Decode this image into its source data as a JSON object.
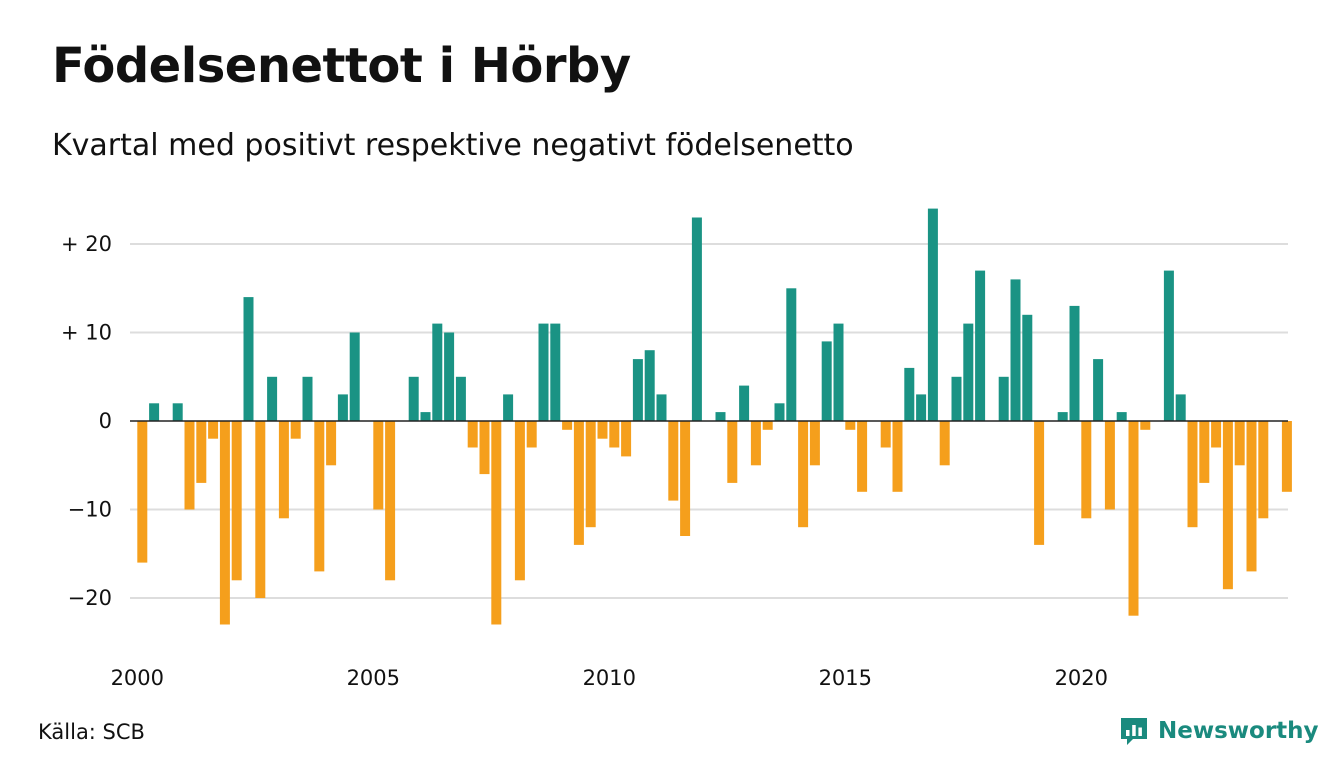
{
  "header": {
    "title": "Födelsenettot i Hörby",
    "subtitle": "Kvartal med positivt respektive negativt födelsenetto"
  },
  "footer": {
    "source": "Källa: SCB",
    "brand": "Newsworthy",
    "brand_icon": "newsworthy-logo-icon"
  },
  "colors": {
    "positive": "#1a9384",
    "negative": "#f59f1c",
    "grid": "#dddddd",
    "zero_line": "#222222"
  },
  "chart_data": {
    "type": "bar",
    "ylim": [
      -26,
      25
    ],
    "y_ticks": [
      {
        "value": 20,
        "label": "+ 20"
      },
      {
        "value": 10,
        "label": "+ 10"
      },
      {
        "value": 0,
        "label": "0"
      },
      {
        "value": -10,
        "label": "−10"
      },
      {
        "value": -20,
        "label": "−20"
      }
    ],
    "x_ticks": [
      "2000",
      "2005",
      "2010",
      "2015",
      "2020"
    ],
    "grid": true,
    "legend": "none",
    "x_start": "2000Q1",
    "values": [
      -16,
      2,
      0,
      2,
      -10,
      -7,
      -2,
      -23,
      -18,
      14,
      -20,
      5,
      -11,
      -2,
      5,
      -17,
      -5,
      3,
      10,
      0,
      -10,
      -18,
      0,
      5,
      1,
      11,
      10,
      5,
      -3,
      -6,
      -23,
      3,
      -18,
      -3,
      11,
      11,
      -1,
      -14,
      -12,
      -2,
      -3,
      -4,
      7,
      8,
      3,
      -9,
      -13,
      23,
      0,
      1,
      -7,
      4,
      -5,
      -1,
      2,
      15,
      -12,
      -5,
      9,
      11,
      -1,
      -8,
      0,
      -3,
      -8,
      6,
      3,
      24,
      -5,
      5,
      11,
      17,
      0,
      5,
      16,
      12,
      -14,
      0,
      1,
      13,
      -11,
      7,
      -10,
      1,
      -22,
      -1,
      0,
      17,
      3,
      -12,
      -7,
      -3,
      -19,
      -5,
      -17,
      -11,
      0,
      -8
    ]
  }
}
